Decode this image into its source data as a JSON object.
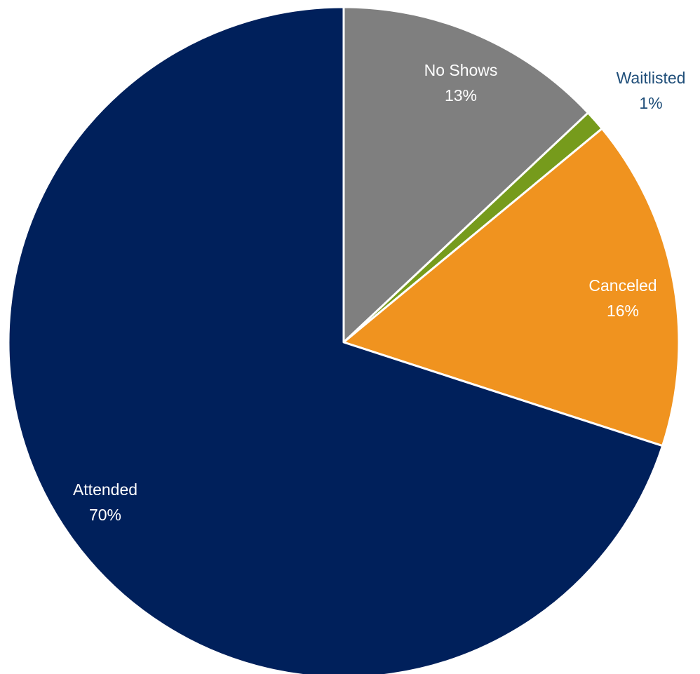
{
  "chart_data": {
    "type": "pie",
    "title": "",
    "start": "top",
    "direction": "clockwise",
    "slices": [
      {
        "name": "No Shows",
        "value": 13,
        "label_name": "No Shows",
        "label_value": "13%",
        "color": "#7f7f7f",
        "label_color": "#ffffff"
      },
      {
        "name": "Waitlisted",
        "value": 1,
        "label_name": "Waitlisted",
        "label_value": "1%",
        "color": "#769b1c",
        "label_color": "#1f4e79"
      },
      {
        "name": "Canceled",
        "value": 16,
        "label_name": "Canceled",
        "label_value": "16%",
        "color": "#f0931f",
        "label_color": "#ffffff"
      },
      {
        "name": "Attended",
        "value": 70,
        "label_name": "Attended",
        "label_value": "70%",
        "color": "#00205b",
        "label_color": "#ffffff"
      }
    ]
  }
}
